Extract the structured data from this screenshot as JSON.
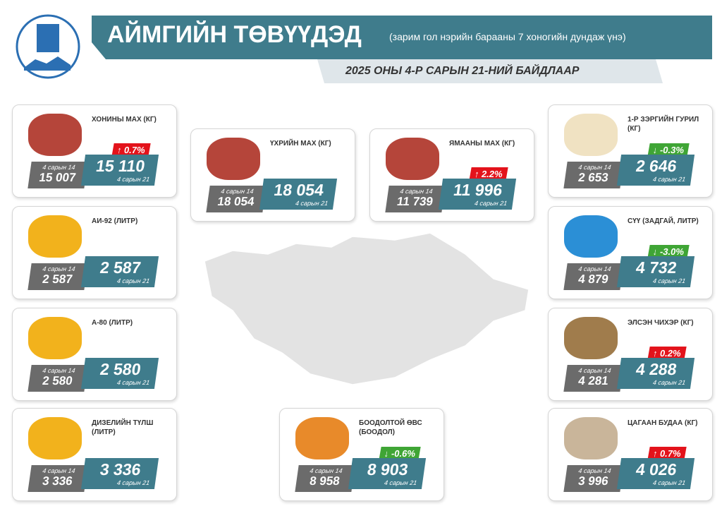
{
  "header": {
    "title": "АЙМГИЙН ТӨВҮҮДЭД",
    "subtitle": "(зарим гол нэрийн барааны 7 хоногийн дундаж үнэ)",
    "date": "2025 ОНЫ 4-Р САРЫН 21-НИЙ БАЙДЛААР"
  },
  "items": [
    {
      "name": "ХОНИНЫ МАХ (КГ)",
      "prev_label": "4 сарын 14",
      "prev": "15 007",
      "current": "15 110",
      "current_label": "4 сарын 21",
      "change": "↑ 0.7%"
    },
    {
      "name": "АИ-92 (ЛИТР)",
      "prev_label": "4 сарын 14",
      "prev": "2 587",
      "current": "2 587",
      "current_label": "4 сарын 21"
    },
    {
      "name": "А-80 (ЛИТР)",
      "prev_label": "4 сарын 14",
      "prev": "2 580",
      "current": "2 580",
      "current_label": "4 сарын 21"
    },
    {
      "name": "ДИЗЕЛИЙН ТҮЛШ (ЛИТР)",
      "prev_label": "4 сарын 14",
      "prev": "3 336",
      "current": "3 336",
      "current_label": "4 сарын 21"
    },
    {
      "name": "ҮХРИЙН МАХ (КГ)",
      "prev_label": "4 сарын 14",
      "prev": "18 054",
      "current": "18 054",
      "current_label": "4 сарын 21"
    },
    {
      "name": "ЯМААНЫ МАХ (КГ)",
      "prev_label": "4 сарын 14",
      "prev": "11 739",
      "current": "11 996",
      "current_label": "4 сарын 21",
      "change": "↑ 2.2%"
    },
    {
      "name": "1-Р ЗЭРГИЙН ГУРИЛ (КГ)",
      "prev_label": "4 сарын 14",
      "prev": "2 653",
      "current": "2 646",
      "current_label": "4 сарын 21",
      "change": "↓ -0.3%"
    },
    {
      "name": "СҮҮ (ЗАДГАЙ, ЛИТР)",
      "prev_label": "4 сарын 14",
      "prev": "4 879",
      "current": "4 732",
      "current_label": "4 сарын 21",
      "change": "↓ -3.0%"
    },
    {
      "name": "ЭЛСЭН ЧИХЭР (КГ)",
      "prev_label": "4 сарын 14",
      "prev": "4 281",
      "current": "4 288",
      "current_label": "4 сарын 21",
      "change": "↑ 0.2%"
    },
    {
      "name": "ЦАГААН БУДАА (КГ)",
      "prev_label": "4 сарын 14",
      "prev": "3 996",
      "current": "4 026",
      "current_label": "4 сарын 21",
      "change": "↑ 0.7%"
    },
    {
      "name": "БООДОЛТОЙ ӨВС (БООДОЛ)",
      "prev_label": "4 сарын 14",
      "prev": "8 958",
      "current": "8 903",
      "current_label": "4 сарын 21",
      "change": "↓ -0.6%"
    }
  ]
}
